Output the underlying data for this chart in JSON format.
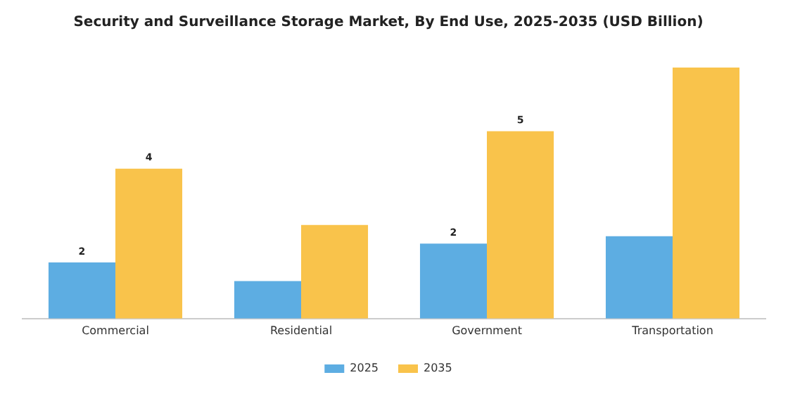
{
  "chart_data": {
    "type": "bar",
    "title": "Security and Surveillance Storage Market, By End Use, 2025-2035 (USD Billion)",
    "categories": [
      "Commercial",
      "Residential",
      "Government",
      "Transportation"
    ],
    "relative": false,
    "series": [
      {
        "name": "2025",
        "color": "#5dade2",
        "values": [
          1.5,
          1.0,
          2.0,
          2.2
        ],
        "value_labels": [
          "2",
          null,
          "2",
          null
        ]
      },
      {
        "name": "2035",
        "color": "#f9c34b",
        "values": [
          4.0,
          2.5,
          5.0,
          6.7
        ],
        "value_labels": [
          "4",
          null,
          "5",
          null
        ]
      }
    ],
    "legend": "bottom",
    "grid": false
  }
}
